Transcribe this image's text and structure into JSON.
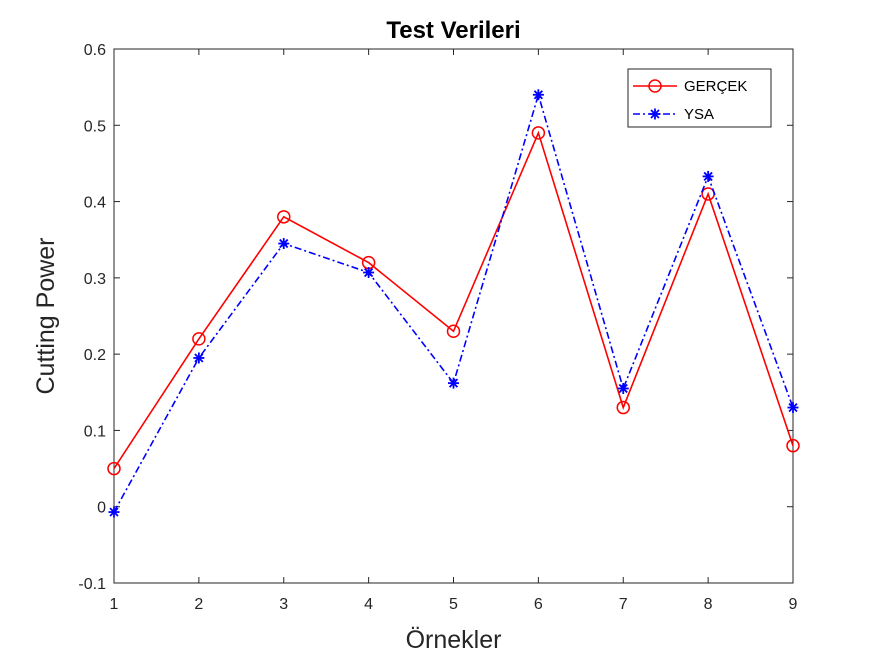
{
  "chart_data": {
    "type": "line",
    "title": "Test Verileri",
    "xlabel": "Örnekler",
    "ylabel": "Cutting Power",
    "x": [
      1,
      2,
      3,
      4,
      5,
      6,
      7,
      8,
      9
    ],
    "xlim": [
      1,
      9
    ],
    "ylim": [
      -0.1,
      0.6
    ],
    "xticks": [
      1,
      2,
      3,
      4,
      5,
      6,
      7,
      8,
      9
    ],
    "yticks": [
      -0.1,
      0,
      0.1,
      0.2,
      0.3,
      0.4,
      0.5,
      0.6
    ],
    "ytick_labels": [
      "-0.1",
      "0",
      "0.1",
      "0.2",
      "0.3",
      "0.4",
      "0.5",
      "0.6"
    ],
    "grid": false,
    "legend_position": "top-right",
    "series": [
      {
        "name": "GERÇEK",
        "values": [
          0.05,
          0.22,
          0.38,
          0.32,
          0.23,
          0.49,
          0.13,
          0.41,
          0.08
        ],
        "color": "#ff0000",
        "line_style": "solid",
        "marker": "circle"
      },
      {
        "name": "YSA",
        "values": [
          -0.007,
          0.195,
          0.345,
          0.307,
          0.162,
          0.54,
          0.155,
          0.433,
          0.13
        ],
        "color": "#0000ff",
        "line_style": "dash-dot",
        "marker": "asterisk"
      }
    ]
  }
}
